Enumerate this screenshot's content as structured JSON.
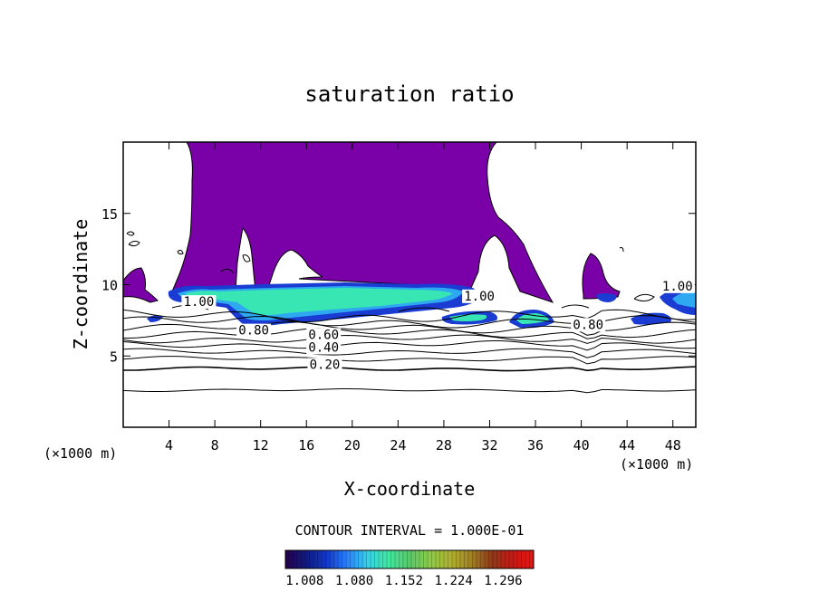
{
  "chart_data": {
    "type": "heatmap",
    "title": "saturation ratio",
    "xlabel": "X-coordinate",
    "ylabel": "Z-coordinate",
    "x_unit": "(×1000 m)",
    "y_unit": "(×1000 m)",
    "xlim": [
      0,
      50
    ],
    "ylim": [
      0,
      20
    ],
    "x_ticks": [
      4,
      8,
      12,
      16,
      20,
      24,
      28,
      32,
      36,
      40,
      44,
      48
    ],
    "y_ticks": [
      5,
      10,
      15
    ],
    "contour_interval_text": "CONTOUR INTERVAL = 1.000E-01",
    "contour_labels": [
      {
        "text": "0.20",
        "x": 17.6,
        "z": 4.1
      },
      {
        "text": "0.40",
        "x": 17.5,
        "z": 5.3
      },
      {
        "text": "0.60",
        "x": 17.5,
        "z": 6.2
      },
      {
        "text": "0.80",
        "x": 11.4,
        "z": 6.5
      },
      {
        "text": "1.00",
        "x": 6.6,
        "z": 8.5
      },
      {
        "text": "1.00",
        "x": 31.1,
        "z": 8.9
      },
      {
        "text": "0.80",
        "x": 40.6,
        "z": 6.9
      },
      {
        "text": "1.00",
        "x": 48.4,
        "z": 9.6
      }
    ],
    "contour_lines_z": [
      2.6,
      4.1,
      4.8,
      5.3,
      5.8,
      6.2,
      6.6,
      7.0,
      7.4,
      7.8
    ],
    "colorbar": {
      "range": [
        0.98,
        1.34
      ],
      "tick_labels": [
        "1.008",
        "1.080",
        "1.152",
        "1.224",
        "1.296"
      ],
      "colors": [
        "#25004a",
        "#101a80",
        "#1238cc",
        "#2a82ff",
        "#36d2e8",
        "#40e8a0",
        "#5ac86a",
        "#8ccc46",
        "#b0b030",
        "#a08024",
        "#903818",
        "#c81814",
        "#ec1410"
      ]
    },
    "fills": {
      "region_above_threshold_color": "#7a00a8",
      "supersaturated_colors": [
        "#1a3cd2",
        "#2ea8f0",
        "#38e6b4"
      ]
    }
  }
}
